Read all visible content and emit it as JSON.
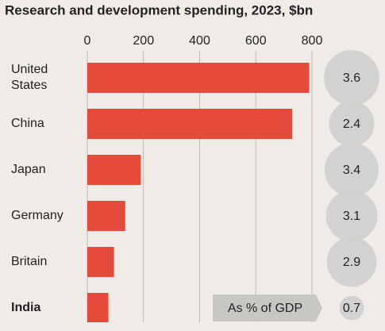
{
  "chart_data": {
    "type": "bar",
    "orientation": "horizontal",
    "title": "Research and development spending, 2023, $bn",
    "categories": [
      "United States",
      "China",
      "Japan",
      "Germany",
      "Britain",
      "India"
    ],
    "values": [
      790,
      730,
      190,
      135,
      95,
      75
    ],
    "color": "#e64a3b",
    "emphasis": "India",
    "xlim": [
      0,
      800
    ],
    "xticks": [
      0,
      200,
      400,
      600,
      800
    ],
    "grid": true,
    "gdp_share": {
      "label": "As % of GDP",
      "color": "#cfcfcf",
      "values": [
        3.6,
        2.4,
        3.4,
        3.1,
        2.9,
        0.7
      ]
    }
  }
}
